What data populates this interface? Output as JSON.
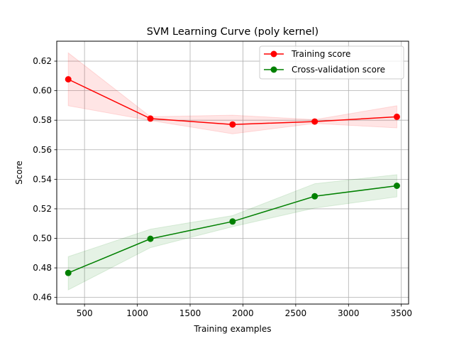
{
  "chart_data": {
    "type": "line",
    "title": "SVM Learning Curve (poly kernel)",
    "xlabel": "Training examples",
    "ylabel": "Score",
    "xlim": [
      237,
      3569
    ],
    "ylim": [
      0.4555,
      0.6335
    ],
    "xticks": [
      500,
      1000,
      1500,
      2000,
      2500,
      3000,
      3500
    ],
    "yticks": [
      0.46,
      0.48,
      0.5,
      0.52,
      0.54,
      0.56,
      0.58,
      0.6,
      0.62
    ],
    "grid": true,
    "legend_position": "top-right",
    "x": [
      346,
      1124,
      1902,
      2680,
      3458
    ],
    "series": [
      {
        "name": "Training score",
        "color": "#ff0000",
        "band_color": "#ffcccc",
        "values": [
          0.6077,
          0.5811,
          0.5771,
          0.5791,
          0.5823
        ],
        "band_lower": [
          0.5898,
          0.5798,
          0.5708,
          0.5778,
          0.5748
        ],
        "band_upper": [
          0.6256,
          0.5824,
          0.5834,
          0.5804,
          0.5898
        ]
      },
      {
        "name": "Cross-validation score",
        "color": "#008000",
        "band_color": "#cce6cc",
        "values": [
          0.4766,
          0.4997,
          0.5114,
          0.5285,
          0.5356
        ],
        "band_lower": [
          0.4651,
          0.4937,
          0.5079,
          0.5205,
          0.5281
        ],
        "band_upper": [
          0.4876,
          0.5062,
          0.5154,
          0.537,
          0.5431
        ]
      }
    ]
  }
}
